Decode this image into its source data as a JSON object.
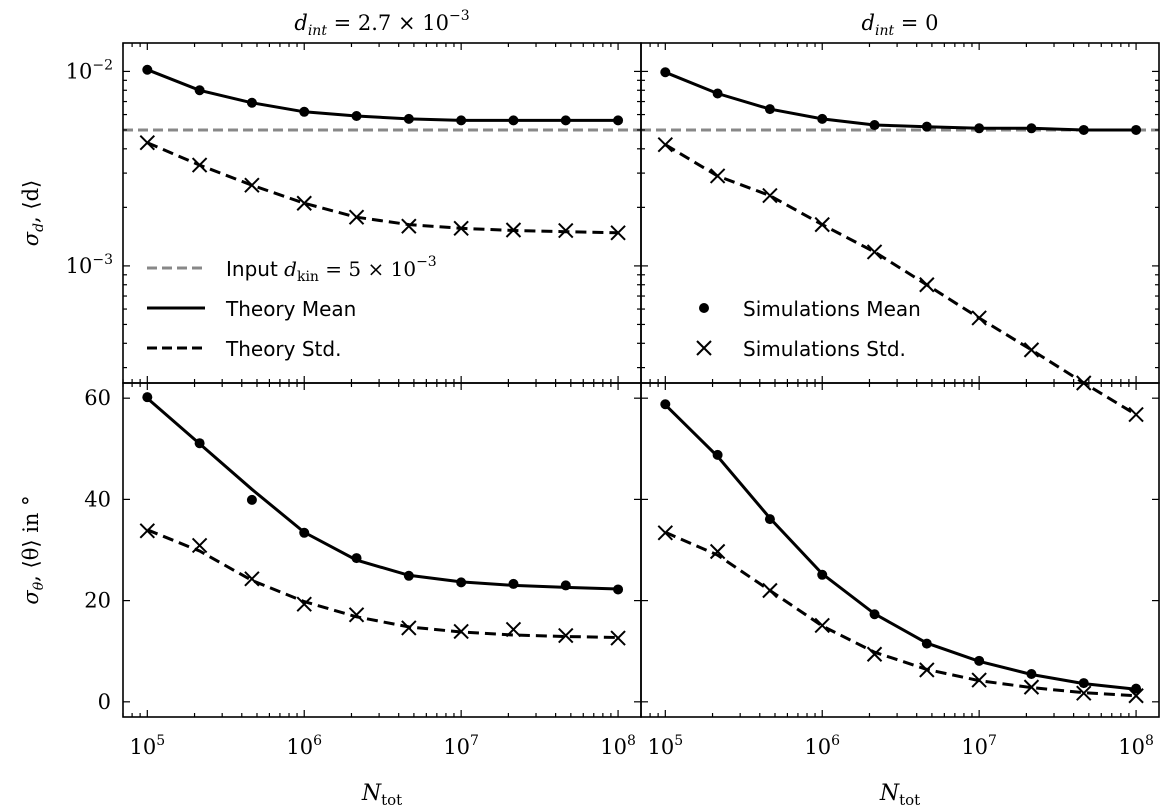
{
  "chart_data": [
    {
      "type": "line",
      "panel": "top-left",
      "title": "d_int = 2.7 × 10^-3",
      "ylabel": "σ_d, ⟨d⟩",
      "yscale": "log",
      "ylim": [
        0.00025,
        0.014
      ],
      "xscale": "log",
      "xlim": [
        70000,
        140000000
      ],
      "x": [
        100000,
        215443,
        464159,
        1000000,
        2154435,
        4641589,
        10000000,
        21544347,
        46415888,
        100000000
      ],
      "input_d_kin": 0.005,
      "series": [
        {
          "name": "Theory Mean",
          "values": [
            0.0102,
            0.008,
            0.0069,
            0.0062,
            0.0059,
            0.0057,
            0.0056,
            0.0056,
            0.0056,
            0.0056
          ]
        },
        {
          "name": "Theory Std.",
          "values": [
            0.0043,
            0.0033,
            0.0026,
            0.0021,
            0.00178,
            0.00163,
            0.00156,
            0.00152,
            0.0015,
            0.00148
          ]
        },
        {
          "name": "Simulations Mean",
          "values": [
            0.0102,
            0.008,
            0.0069,
            0.0062,
            0.0059,
            0.0057,
            0.0056,
            0.0056,
            0.0056,
            0.0056
          ]
        },
        {
          "name": "Simulations Std.",
          "values": [
            0.0043,
            0.0033,
            0.0026,
            0.0021,
            0.00178,
            0.0016,
            0.00156,
            0.00153,
            0.00152,
            0.00148
          ]
        }
      ]
    },
    {
      "type": "line",
      "panel": "top-right",
      "title": "d_int = 0",
      "yscale": "log",
      "ylim": [
        0.00025,
        0.014
      ],
      "xscale": "log",
      "xlim": [
        70000,
        140000000
      ],
      "x": [
        100000,
        215443,
        464159,
        1000000,
        2154435,
        4641589,
        10000000,
        21544347,
        46415888,
        100000000
      ],
      "input_d_kin": 0.005,
      "series": [
        {
          "name": "Theory Mean",
          "values": [
            0.0099,
            0.0077,
            0.0064,
            0.0057,
            0.0053,
            0.0052,
            0.0051,
            0.0051,
            0.005,
            0.005
          ]
        },
        {
          "name": "Theory Std.",
          "values": [
            0.0042,
            0.0029,
            0.0023,
            0.00163,
            0.00118,
            0.0008,
            0.00054,
            0.00037,
            0.00025,
            0.000172
          ]
        },
        {
          "name": "Simulations Mean",
          "values": [
            0.0099,
            0.0077,
            0.0064,
            0.0057,
            0.0053,
            0.0052,
            0.0051,
            0.0051,
            0.005,
            0.005
          ]
        },
        {
          "name": "Simulations Std.",
          "values": [
            0.0042,
            0.0029,
            0.0023,
            0.00163,
            0.00118,
            0.0008,
            0.00054,
            0.00037,
            0.00025,
            0.000172
          ]
        }
      ]
    },
    {
      "type": "line",
      "panel": "bottom-left",
      "ylabel": "σ_θ, ⟨θ⟩ in °",
      "xlabel": "N_tot",
      "ylim": [
        -3,
        63
      ],
      "xscale": "log",
      "xlim": [
        70000,
        140000000
      ],
      "x": [
        100000,
        215443,
        464159,
        1000000,
        2154435,
        4641589,
        10000000,
        21544347,
        46415888,
        100000000
      ],
      "series": [
        {
          "name": "Theory Mean",
          "values": [
            60.0,
            51.0,
            42.0,
            33.5,
            28.0,
            25.0,
            23.7,
            23.0,
            22.6,
            22.3
          ]
        },
        {
          "name": "Theory Std.",
          "values": [
            34.0,
            29.8,
            24.0,
            19.8,
            16.8,
            14.8,
            13.8,
            13.2,
            12.9,
            12.7
          ]
        },
        {
          "name": "Simulations Mean",
          "values": [
            60.2,
            51.1,
            39.9,
            33.4,
            28.4,
            24.9,
            23.6,
            23.3,
            23.0,
            22.2
          ]
        },
        {
          "name": "Simulations Std.",
          "values": [
            33.8,
            30.9,
            24.3,
            19.3,
            17.2,
            14.6,
            13.9,
            14.3,
            13.1,
            12.6
          ]
        }
      ]
    },
    {
      "type": "line",
      "panel": "bottom-right",
      "xlabel": "N_tot",
      "ylim": [
        -3,
        63
      ],
      "xscale": "log",
      "xlim": [
        70000,
        140000000
      ],
      "x": [
        100000,
        215443,
        464159,
        1000000,
        2154435,
        4641589,
        10000000,
        21544347,
        46415888,
        100000000
      ],
      "series": [
        {
          "name": "Theory Mean",
          "values": [
            58.7,
            48.5,
            36.3,
            25.3,
            17.4,
            11.6,
            8.0,
            5.4,
            3.6,
            2.5
          ]
        },
        {
          "name": "Theory Std.",
          "values": [
            33.5,
            29.0,
            22.0,
            15.0,
            9.8,
            6.4,
            4.2,
            2.8,
            1.8,
            1.2
          ]
        },
        {
          "name": "Simulations Mean",
          "values": [
            58.8,
            48.8,
            36.1,
            25.1,
            17.3,
            11.5,
            8.1,
            5.5,
            3.7,
            2.6
          ]
        },
        {
          "name": "Simulations Std.",
          "values": [
            33.4,
            29.7,
            22.0,
            15.1,
            9.4,
            6.3,
            4.3,
            2.9,
            1.7,
            1.2
          ]
        }
      ]
    }
  ],
  "legend_left": {
    "input_label": "Input ",
    "input_math": "d",
    "input_math_sub": "kin",
    "input_math_rest": " = 5 × 10",
    "input_math_exp": "−3",
    "theory_mean": "Theory Mean",
    "theory_std": "Theory Std."
  },
  "legend_right": {
    "sim_mean": "Simulations Mean",
    "sim_std": "Simulations Std."
  },
  "titles": {
    "left_d": "d",
    "left_sub": "int",
    "left_rest": " = 2.7 × 10",
    "left_exp": "−3",
    "right_d": "d",
    "right_sub": "int",
    "right_rest": " = 0"
  },
  "axis_labels": {
    "top_y_sigma": "σ",
    "top_y_sub": "d",
    "top_y_rest": ", ⟨d⟩",
    "bot_y_sigma": "σ",
    "bot_y_sub": "θ",
    "bot_y_rest": ", ⟨θ⟩ in °",
    "x_N": "N",
    "x_sub": "tot"
  },
  "ticks": {
    "x": [
      {
        "base": "10",
        "exp": "5"
      },
      {
        "base": "10",
        "exp": "6"
      },
      {
        "base": "10",
        "exp": "7"
      },
      {
        "base": "10",
        "exp": "8"
      }
    ],
    "y_top": [
      {
        "base": "10",
        "exp": "−2"
      },
      {
        "base": "10",
        "exp": "−3"
      }
    ],
    "y_bottom": [
      "60",
      "40",
      "20",
      "0"
    ]
  },
  "colors": {
    "input_line": "#888888",
    "lines": "#000000"
  }
}
